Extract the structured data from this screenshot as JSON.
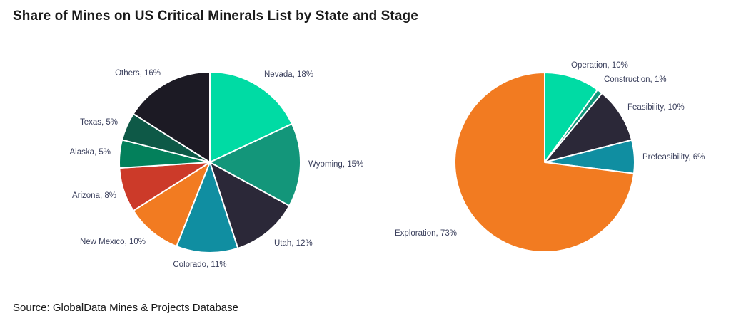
{
  "title": "Share of Mines on US Critical Minerals List by State and Stage",
  "source": "Source: GlobalData Mines & Projects Database",
  "chart_data": [
    {
      "type": "pie",
      "slices": [
        {
          "label": "Nevada, 18%",
          "value": 18,
          "color": "#00dba4"
        },
        {
          "label": "Wyoming, 15%",
          "value": 15,
          "color": "#13967a"
        },
        {
          "label": "Utah, 12%",
          "value": 12,
          "color": "#2b2838"
        },
        {
          "label": "Colorado, 11%",
          "value": 11,
          "color": "#108ea1"
        },
        {
          "label": "New Mexico, 10%",
          "value": 10,
          "color": "#f27b21"
        },
        {
          "label": "Arizona, 8%",
          "value": 8,
          "color": "#cc3a29"
        },
        {
          "label": "Alaska, 5%",
          "value": 5,
          "color": "#03805b"
        },
        {
          "label": "Texas, 5%",
          "value": 5,
          "color": "#0e5947"
        },
        {
          "label": "Others, 16%",
          "value": 16,
          "color": "#1c1a24"
        }
      ]
    },
    {
      "type": "pie",
      "slices": [
        {
          "label": "Operation, 10%",
          "value": 10,
          "color": "#00dba4"
        },
        {
          "label": "Construction, 1%",
          "value": 1,
          "color": "#13967a"
        },
        {
          "label": "Feasibility, 10%",
          "value": 10,
          "color": "#2b2838"
        },
        {
          "label": "Prefeasibility, 6%",
          "value": 6,
          "color": "#108ea1"
        },
        {
          "label": "Exploration, 73%",
          "value": 73,
          "color": "#f27b21"
        }
      ]
    }
  ]
}
